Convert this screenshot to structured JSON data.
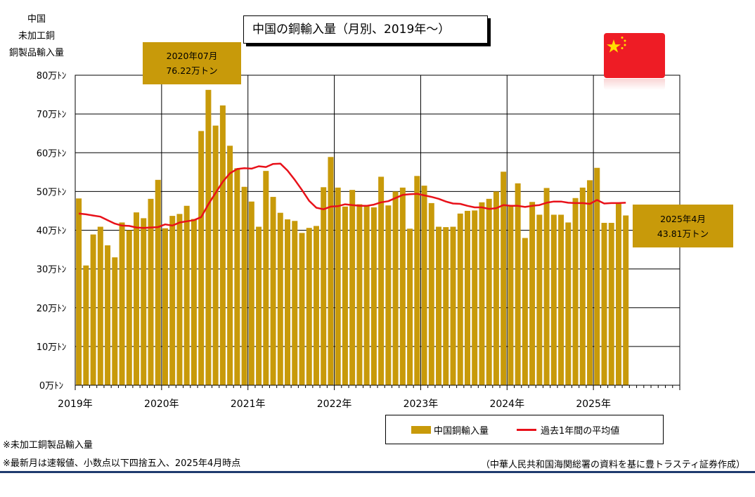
{
  "title": "中国の銅輸入量（月別、2019年～）",
  "ylabel_lines": [
    "中国",
    "未加工銅",
    "銅製品輸入量"
  ],
  "callout_peak": {
    "line1": "2020年07月",
    "line2": "76.22万トン"
  },
  "callout_latest": {
    "line1": "2025年4月",
    "line2": "43.81万トン"
  },
  "legend": {
    "bar": "中国銅輸入量",
    "line": "過去1年間の平均値"
  },
  "notes": [
    "※未加工銅製品輸入量",
    "※最新月は速報値、小数点以下四捨五入、2025年4月時点"
  ],
  "source": "（中華人民共和国海関総署の資料を基に豊トラスティ証券作成）",
  "flag_icon": "china-flag-icon",
  "colors": {
    "bar": "#c89a0a",
    "line": "#e8111a",
    "rule": "#1f3a6e"
  },
  "chart_data": {
    "type": "bar",
    "title": "中国の銅輸入量（月別、2019年～）",
    "ylabel": "中国 未加工銅 銅製品輸入量",
    "ylim": [
      0,
      80
    ],
    "y_ticks": [
      "0万ﾄﾝ",
      "10万ﾄﾝ",
      "20万ﾄﾝ",
      "30万ﾄﾝ",
      "40万ﾄﾝ",
      "50万ﾄﾝ",
      "60万ﾄﾝ",
      "70万ﾄﾝ",
      "80万ﾄﾝ"
    ],
    "x_ticks": [
      "2019年",
      "2020年",
      "2021年",
      "2022年",
      "2023年",
      "2024年",
      "2025年"
    ],
    "grid": true,
    "legend_position": "bottom-right",
    "months_axis": 84,
    "series": [
      {
        "name": "中国銅輸入量",
        "type": "bar",
        "values": [
          48.2,
          30.9,
          38.9,
          40.9,
          36.1,
          33.0,
          42.0,
          40.0,
          44.6,
          43.1,
          48.1,
          53.0,
          40.5,
          43.7,
          44.2,
          46.3,
          42.9,
          65.6,
          76.22,
          67.0,
          72.2,
          61.8,
          56.0,
          51.2,
          47.4,
          40.9,
          55.3,
          48.6,
          44.5,
          42.8,
          42.4,
          39.3,
          40.6,
          41.1,
          51.1,
          58.9,
          51.0,
          46.1,
          50.4,
          46.7,
          46.3,
          45.9,
          53.8,
          46.4,
          50.0,
          51.0,
          40.4,
          54.0,
          51.5,
          47.0,
          40.9,
          40.8,
          40.9,
          44.3,
          45.0,
          45.1,
          47.2,
          48.1,
          50.0,
          55.1,
          46.4,
          52.1,
          38.0,
          47.3,
          44.0,
          50.9,
          44.0,
          44.0,
          42.0,
          48.3,
          51.0,
          52.9,
          56.1,
          41.9,
          41.9,
          46.8,
          43.81
        ]
      },
      {
        "name": "過去1年間の平均値",
        "type": "line",
        "values": [
          44.3,
          44.1,
          43.8,
          43.5,
          42.6,
          41.7,
          41.2,
          41.1,
          40.7,
          40.6,
          40.7,
          40.8,
          41.5,
          41.2,
          42.0,
          42.3,
          42.6,
          43.4,
          46.7,
          49.6,
          52.5,
          54.7,
          55.8,
          56.0,
          55.9,
          56.5,
          56.3,
          57.1,
          57.2,
          55.4,
          53.0,
          50.4,
          47.6,
          45.8,
          45.4,
          46.1,
          46.2,
          46.7,
          46.5,
          46.3,
          46.3,
          46.6,
          47.2,
          47.5,
          48.3,
          49.1,
          49.3,
          49.4,
          49.0,
          48.6,
          48.1,
          47.4,
          46.9,
          46.8,
          46.3,
          45.9,
          45.9,
          45.5,
          45.7,
          46.5,
          46.3,
          46.3,
          46.0,
          46.3,
          46.5,
          47.1,
          47.4,
          47.4,
          47.1,
          47.0,
          47.0,
          46.8,
          47.8,
          46.9,
          47.0,
          47.0,
          47.1
        ]
      }
    ]
  }
}
